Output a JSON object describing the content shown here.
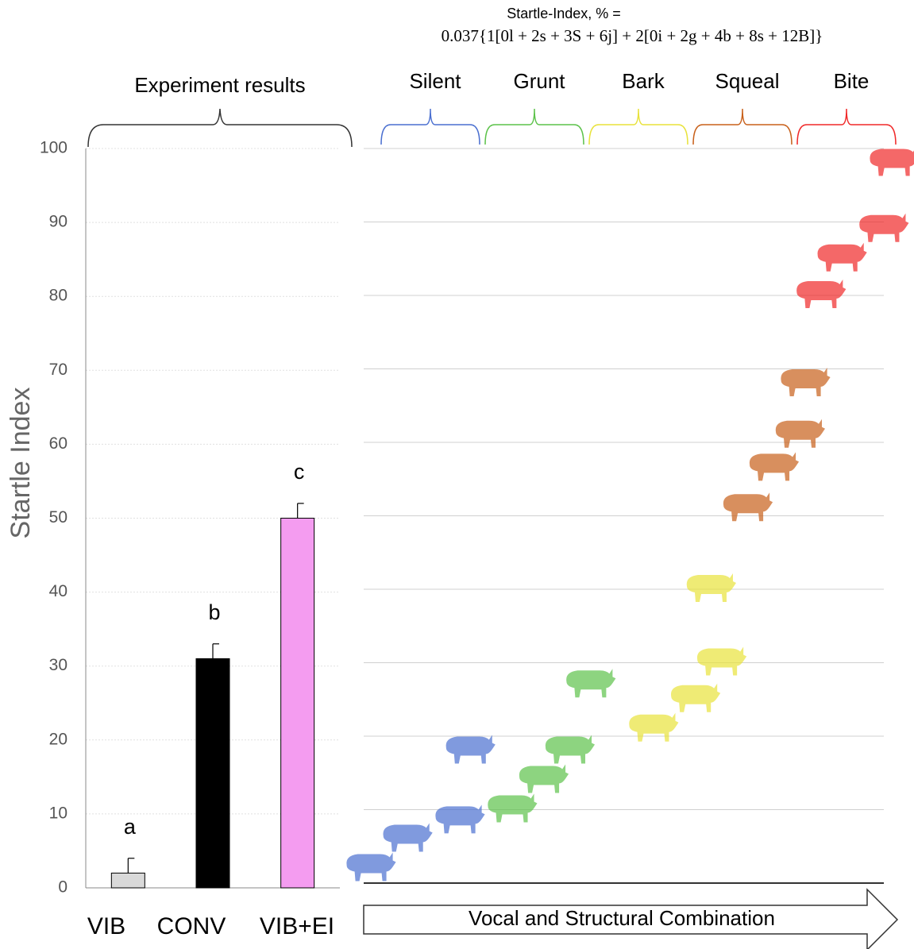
{
  "chart_data": [
    {
      "type": "bar",
      "title": "Experiment results",
      "ylabel": "Startle Index",
      "categories": [
        "VIB",
        "CONV",
        "VIB+EI"
      ],
      "values": [
        2,
        31,
        50
      ],
      "errors": [
        2,
        2,
        2
      ],
      "annotations": [
        "a",
        "b",
        "c"
      ],
      "colors": [
        "#d9d9d9",
        "#000000",
        "#f49cf0"
      ],
      "ylim": [
        0,
        100
      ],
      "yticks": [
        0,
        10,
        20,
        30,
        40,
        50,
        60,
        70,
        80,
        90,
        100
      ],
      "grid": true
    },
    {
      "type": "scatter",
      "title": "Startle-Index, %  =",
      "formula": "0.037{1[0l + 2s + 3S + 6j] + 2[0i + 2g + 4b + 8s + 12B]}",
      "xlabel": "Vocal and Structural Combination",
      "xlim": [
        0,
        105
      ],
      "ylim": [
        0,
        100
      ],
      "grid": true,
      "series": [
        {
          "name": "Silent",
          "color": "#4a6fd0",
          "x": [
            1,
            8,
            18,
            20
          ],
          "values": [
            2,
            6,
            8.5,
            18
          ]
        },
        {
          "name": "Grunt",
          "color": "#5cc24a",
          "x": [
            28,
            34,
            39,
            43
          ],
          "values": [
            10,
            14,
            18,
            27
          ]
        },
        {
          "name": "Bark",
          "color": "#e8e23a",
          "x": [
            55,
            63,
            68,
            66
          ],
          "values": [
            21,
            25,
            30,
            40
          ]
        },
        {
          "name": "Squeal",
          "color": "#c8601a",
          "x": [
            73,
            78,
            83,
            84
          ],
          "values": [
            51,
            56.5,
            61,
            68
          ]
        },
        {
          "name": "Bite",
          "color": "#f02828",
          "x": [
            87,
            91,
            99,
            101
          ],
          "values": [
            80,
            85,
            89,
            98
          ]
        }
      ]
    }
  ]
}
